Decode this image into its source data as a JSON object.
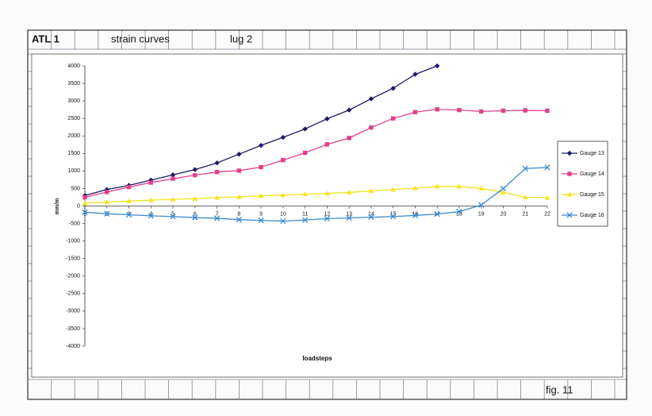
{
  "header": {
    "cells": [
      "ATL 1",
      "strain curves",
      "lug 2"
    ]
  },
  "footer": {
    "label": "fig. 11"
  },
  "chart_data": {
    "type": "line",
    "xlabel": "loadsteps",
    "ylabel": "mm/m",
    "categories": [
      "1",
      "2",
      "3",
      "4",
      "5",
      "6",
      "7",
      "8",
      "9",
      "10",
      "11",
      "12",
      "13",
      "14",
      "15",
      "16",
      "17",
      "18",
      "19",
      "20",
      "21",
      "22"
    ],
    "ylim": [
      -4000,
      4000
    ],
    "yticks": [
      -4000,
      -3500,
      -3000,
      -2500,
      -2000,
      -1500,
      -1000,
      -500,
      0,
      500,
      1000,
      1500,
      2000,
      2500,
      3000,
      3500,
      4000
    ],
    "legend": "right",
    "series": [
      {
        "name": "Gauge 13",
        "color": "#1b1a66",
        "marker": "diamond",
        "values": [
          300,
          470,
          590,
          740,
          890,
          1040,
          1230,
          1480,
          1730,
          1960,
          2200,
          2490,
          2740,
          3060,
          3360,
          3760,
          4000,
          null,
          null,
          null,
          null,
          null
        ]
      },
      {
        "name": "Gauge 14",
        "color": "#e0408a",
        "marker": "square",
        "values": [
          250,
          400,
          540,
          670,
          780,
          880,
          970,
          1010,
          1110,
          1310,
          1520,
          1760,
          1940,
          2240,
          2500,
          2680,
          2760,
          2740,
          2700,
          2720,
          2730,
          2720
        ]
      },
      {
        "name": "Gauge 15",
        "color": "#f2e31a",
        "marker": "triangle",
        "values": [
          80,
          110,
          140,
          170,
          190,
          210,
          240,
          260,
          290,
          310,
          340,
          360,
          390,
          430,
          470,
          510,
          560,
          560,
          500,
          390,
          250,
          240
        ]
      },
      {
        "name": "Gauge 16",
        "color": "#3a8ad0",
        "marker": "x",
        "values": [
          -180,
          -220,
          -250,
          -280,
          -300,
          -330,
          -350,
          -390,
          -410,
          -430,
          -400,
          -360,
          -340,
          -320,
          -300,
          -270,
          -230,
          -160,
          30,
          500,
          1070,
          1100
        ]
      }
    ]
  }
}
